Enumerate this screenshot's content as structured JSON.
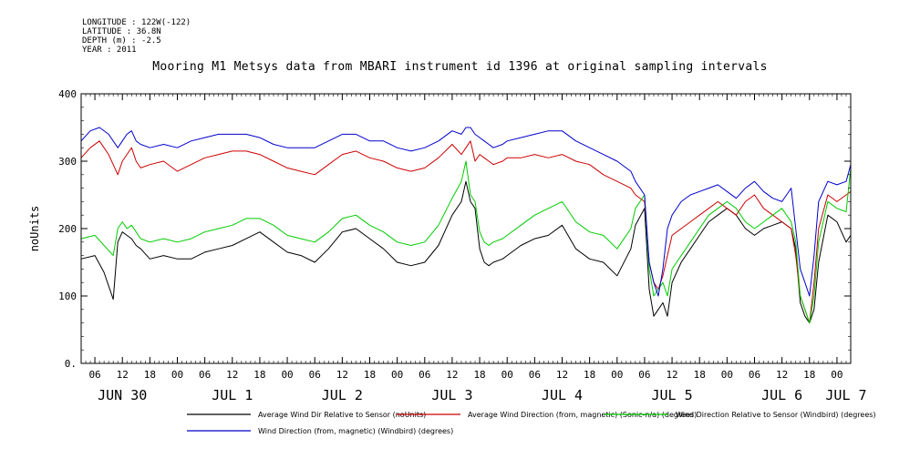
{
  "metadata": [
    "LONGITUDE : 122W(-122)",
    "LATITUDE : 36.8N",
    "DEPTH (m) : -2.5",
    "YEAR : 2011"
  ],
  "chart_data": {
    "type": "line",
    "title": "Mooring M1 Metsys data from MBARI instrument id 1396 at original sampling intervals",
    "ylabel": "noUnits",
    "ylim": [
      0,
      400
    ],
    "yticks": [
      0,
      100,
      200,
      300,
      400
    ],
    "ytick_labels": [
      "0.",
      "100",
      "200",
      "300",
      "400"
    ],
    "xlim": [
      3,
      171
    ],
    "xticks": [
      6,
      12,
      18,
      24,
      30,
      36,
      42,
      48,
      54,
      60,
      66,
      72,
      78,
      84,
      90,
      96,
      102,
      108,
      114,
      120,
      126,
      132,
      138,
      144,
      150,
      156,
      162,
      168
    ],
    "xtick_labels": [
      "06",
      "12",
      "18",
      "00",
      "06",
      "12",
      "18",
      "00",
      "06",
      "12",
      "18",
      "00",
      "06",
      "12",
      "18",
      "00",
      "06",
      "12",
      "18",
      "00",
      "06",
      "12",
      "18",
      "00",
      "06",
      "12",
      "18",
      "00"
    ],
    "day_labels": [
      {
        "x": 12,
        "label": "JUN 30"
      },
      {
        "x": 36,
        "label": "JUL 1"
      },
      {
        "x": 60,
        "label": "JUL 2"
      },
      {
        "x": 84,
        "label": "JUL 3"
      },
      {
        "x": 108,
        "label": "JUL 4"
      },
      {
        "x": 132,
        "label": "JUL 5"
      },
      {
        "x": 156,
        "label": "JUL 6"
      },
      {
        "x": 170,
        "label": "JUL 7"
      }
    ],
    "grid": false,
    "legend_placement": "bottom",
    "series": [
      {
        "name": "Average Wind Dir Relative to Sensor (noUnits)",
        "color": "#000000",
        "x": [
          3,
          6,
          8,
          10,
          11,
          12,
          13,
          14,
          15,
          16,
          18,
          21,
          24,
          27,
          30,
          33,
          36,
          39,
          42,
          45,
          48,
          51,
          54,
          57,
          60,
          63,
          66,
          69,
          72,
          75,
          78,
          81,
          84,
          86,
          87,
          88,
          89,
          90,
          91,
          92,
          93,
          95,
          96,
          99,
          102,
          105,
          108,
          111,
          114,
          117,
          120,
          123,
          124,
          126,
          127,
          128,
          129,
          130,
          131,
          132,
          134,
          136,
          138,
          140,
          142,
          144,
          146,
          148,
          150,
          152,
          154,
          156,
          158,
          159,
          160,
          161,
          162,
          163,
          164,
          166,
          168,
          170,
          171
        ],
        "y": [
          155,
          160,
          135,
          95,
          180,
          195,
          190,
          185,
          175,
          170,
          155,
          160,
          155,
          155,
          165,
          170,
          175,
          185,
          195,
          180,
          165,
          160,
          150,
          170,
          195,
          200,
          185,
          170,
          150,
          145,
          150,
          175,
          220,
          240,
          270,
          240,
          230,
          170,
          150,
          145,
          150,
          155,
          160,
          175,
          185,
          190,
          205,
          170,
          155,
          150,
          130,
          170,
          205,
          230,
          110,
          70,
          80,
          90,
          70,
          120,
          150,
          170,
          190,
          210,
          220,
          230,
          220,
          200,
          190,
          200,
          205,
          210,
          200,
          170,
          90,
          70,
          60,
          80,
          150,
          220,
          210,
          180,
          190
        ]
      },
      {
        "name": "Average Wind Direction (from, magnetic) (Sonic-n/a) (degrees)",
        "color": "#cc0000",
        "x": [
          3,
          5,
          7,
          9,
          11,
          12,
          13,
          14,
          15,
          16,
          18,
          21,
          24,
          27,
          30,
          33,
          36,
          39,
          42,
          45,
          48,
          51,
          54,
          57,
          60,
          63,
          66,
          69,
          72,
          75,
          78,
          81,
          84,
          86,
          87,
          88,
          89,
          90,
          91,
          92,
          93,
          95,
          96,
          99,
          102,
          105,
          108,
          111,
          114,
          117,
          120,
          123,
          124,
          126,
          127,
          128,
          129,
          130,
          131,
          132,
          134,
          136,
          138,
          140,
          142,
          144,
          146,
          148,
          150,
          152,
          154,
          156,
          158,
          159,
          160,
          161,
          162,
          163,
          164,
          166,
          168,
          170,
          171
        ],
        "y": [
          305,
          320,
          330,
          310,
          280,
          300,
          310,
          320,
          300,
          290,
          295,
          300,
          285,
          295,
          305,
          310,
          315,
          315,
          310,
          300,
          290,
          285,
          280,
          295,
          310,
          315,
          305,
          300,
          290,
          285,
          290,
          305,
          325,
          310,
          320,
          330,
          300,
          310,
          305,
          300,
          295,
          300,
          305,
          305,
          310,
          305,
          310,
          300,
          295,
          280,
          270,
          260,
          250,
          240,
          150,
          120,
          110,
          130,
          160,
          190,
          200,
          210,
          220,
          230,
          240,
          230,
          220,
          240,
          250,
          230,
          220,
          210,
          200,
          160,
          100,
          80,
          60,
          120,
          200,
          250,
          240,
          250,
          255
        ]
      },
      {
        "name": "Wind Direction Relative to Sensor (Windbird) (degrees)",
        "color": "#00cc00",
        "x": [
          3,
          6,
          8,
          10,
          11,
          12,
          13,
          14,
          15,
          16,
          18,
          21,
          24,
          27,
          30,
          33,
          36,
          39,
          42,
          45,
          48,
          51,
          54,
          57,
          60,
          63,
          66,
          69,
          72,
          75,
          78,
          81,
          84,
          86,
          87,
          88,
          89,
          90,
          91,
          92,
          93,
          95,
          96,
          99,
          102,
          105,
          108,
          111,
          114,
          117,
          120,
          123,
          124,
          126,
          127,
          128,
          129,
          130,
          131,
          132,
          134,
          136,
          138,
          140,
          142,
          144,
          146,
          148,
          150,
          152,
          154,
          156,
          158,
          159,
          160,
          161,
          162,
          163,
          164,
          166,
          168,
          170,
          171
        ],
        "y": [
          185,
          190,
          175,
          160,
          200,
          210,
          200,
          205,
          195,
          185,
          180,
          185,
          180,
          185,
          195,
          200,
          205,
          215,
          215,
          205,
          190,
          185,
          180,
          195,
          215,
          220,
          205,
          195,
          180,
          175,
          180,
          205,
          245,
          270,
          300,
          250,
          240,
          195,
          180,
          175,
          180,
          185,
          190,
          205,
          220,
          230,
          240,
          210,
          195,
          190,
          170,
          200,
          230,
          250,
          140,
          100,
          110,
          120,
          100,
          140,
          160,
          180,
          200,
          220,
          230,
          240,
          230,
          210,
          200,
          210,
          220,
          230,
          210,
          180,
          100,
          80,
          60,
          100,
          180,
          240,
          230,
          225,
          290
        ]
      },
      {
        "name": "Wind Direction (from, magnetic) (Windbird) (degrees)",
        "color": "#0000cc",
        "x": [
          3,
          5,
          7,
          9,
          11,
          12,
          13,
          14,
          15,
          16,
          18,
          21,
          24,
          27,
          30,
          33,
          36,
          39,
          42,
          45,
          48,
          51,
          54,
          57,
          60,
          63,
          66,
          69,
          72,
          75,
          78,
          81,
          84,
          86,
          87,
          88,
          89,
          90,
          91,
          92,
          93,
          95,
          96,
          99,
          102,
          105,
          108,
          111,
          114,
          117,
          120,
          123,
          124,
          126,
          127,
          128,
          129,
          130,
          131,
          132,
          134,
          136,
          138,
          140,
          142,
          144,
          146,
          148,
          150,
          152,
          154,
          156,
          158,
          159,
          160,
          161,
          162,
          163,
          164,
          166,
          168,
          170,
          171
        ],
        "y": [
          330,
          345,
          350,
          340,
          320,
          330,
          340,
          345,
          330,
          325,
          320,
          325,
          320,
          330,
          335,
          340,
          340,
          340,
          335,
          325,
          320,
          320,
          320,
          330,
          340,
          340,
          330,
          330,
          320,
          315,
          320,
          330,
          345,
          340,
          350,
          350,
          340,
          335,
          330,
          325,
          320,
          325,
          330,
          335,
          340,
          345,
          345,
          330,
          320,
          310,
          300,
          285,
          270,
          250,
          150,
          120,
          100,
          140,
          200,
          220,
          240,
          250,
          255,
          260,
          265,
          255,
          245,
          260,
          270,
          255,
          245,
          240,
          260,
          200,
          140,
          120,
          100,
          160,
          240,
          270,
          265,
          270,
          295
        ]
      }
    ]
  }
}
